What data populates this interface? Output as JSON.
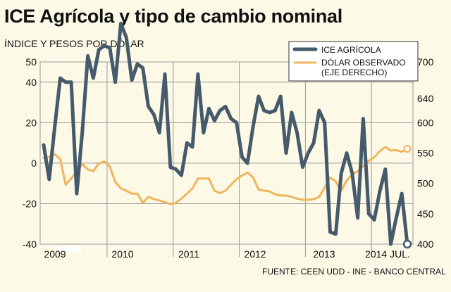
{
  "title": "ICE Agrícola y tipo de cambio nominal",
  "subtitle": "ÍNDICE Y PESOS POR DÓLAR",
  "source": "FUENTE: CEEN UDD - INE - BANCO CENTRAL",
  "colors": {
    "ice": "#455a6b",
    "dolar": "#f0b55c",
    "grid": "#9a9a9a",
    "background": "#fcf9e7"
  },
  "chart_data": {
    "type": "line",
    "x_tick_labels": [
      "2009",
      "2010",
      "2011",
      "2012",
      "2013",
      "2014 JUL."
    ],
    "x_year_starts": [
      2009,
      2010,
      2011,
      2012,
      2013,
      2014
    ],
    "y_left": {
      "ticks": [
        "50",
        "40",
        "20",
        "0",
        "-20",
        "-40"
      ],
      "min": -40,
      "max": 50,
      "tick_values": [
        50,
        40,
        20,
        0,
        -20,
        -40
      ]
    },
    "y_right": {
      "ticks": [
        "700",
        "640",
        "600",
        "550",
        "500",
        "450",
        "400"
      ],
      "min": 400,
      "max": 700,
      "tick_values": [
        700,
        640,
        600,
        550,
        500,
        450,
        400
      ]
    },
    "legend": {
      "position": "top-right"
    },
    "series": [
      {
        "name": "ICE AGRÍCOLA",
        "axis": "left",
        "x": [
          2009.0,
          2009.083,
          2009.167,
          2009.25,
          2009.333,
          2009.417,
          2009.5,
          2009.583,
          2009.667,
          2009.75,
          2009.833,
          2009.917,
          2010.0,
          2010.083,
          2010.167,
          2010.25,
          2010.333,
          2010.417,
          2010.5,
          2010.583,
          2010.667,
          2010.75,
          2010.833,
          2010.917,
          2011.0,
          2011.083,
          2011.167,
          2011.25,
          2011.333,
          2011.417,
          2011.5,
          2011.583,
          2011.667,
          2011.75,
          2011.833,
          2011.917,
          2012.0,
          2012.083,
          2012.167,
          2012.25,
          2012.333,
          2012.417,
          2012.5,
          2012.583,
          2012.667,
          2012.75,
          2012.833,
          2012.917,
          2013.0,
          2013.083,
          2013.167,
          2013.25,
          2013.333,
          2013.417,
          2013.5,
          2013.583,
          2013.667,
          2013.75,
          2013.833,
          2013.917,
          2014.0,
          2014.083,
          2014.167,
          2014.25,
          2014.333,
          2014.417,
          2014.5
        ],
        "values": [
          9,
          -8,
          18,
          42,
          40,
          40,
          -15,
          15,
          53,
          42,
          56,
          58,
          57,
          40,
          69,
          62,
          41,
          49,
          47,
          28,
          24,
          15,
          44,
          -2,
          -3,
          -6,
          10,
          8,
          44,
          15,
          27,
          21,
          26,
          28,
          22,
          20,
          3,
          0,
          18,
          33,
          26,
          25,
          26,
          33,
          5,
          25,
          15,
          -2,
          5,
          10,
          26,
          20,
          -34,
          -35,
          -5,
          5,
          -5,
          -27,
          22,
          -25,
          -28,
          -14,
          -3,
          -40,
          -27,
          -15,
          -40
        ]
      },
      {
        "name": "DÓLAR OBSERVADO (EJE DERECHO)",
        "axis": "right",
        "x": [
          2009.0,
          2009.083,
          2009.167,
          2009.25,
          2009.333,
          2009.417,
          2009.5,
          2009.583,
          2009.667,
          2009.75,
          2009.833,
          2009.917,
          2010.0,
          2010.083,
          2010.167,
          2010.25,
          2010.333,
          2010.417,
          2010.5,
          2010.583,
          2010.667,
          2010.75,
          2010.833,
          2010.917,
          2011.0,
          2011.083,
          2011.167,
          2011.25,
          2011.333,
          2011.417,
          2011.5,
          2011.583,
          2011.667,
          2011.75,
          2011.833,
          2011.917,
          2012.0,
          2012.083,
          2012.167,
          2012.25,
          2012.333,
          2012.417,
          2012.5,
          2012.583,
          2012.667,
          2012.75,
          2012.833,
          2012.917,
          2013.0,
          2013.083,
          2013.167,
          2013.25,
          2013.333,
          2013.417,
          2013.5,
          2013.583,
          2013.667,
          2013.75,
          2013.833,
          2013.917,
          2014.0,
          2014.083,
          2014.167,
          2014.25,
          2014.333,
          2014.417,
          2014.5
        ],
        "values": [
          542,
          544,
          548,
          540,
          498,
          508,
          520,
          532,
          523,
          520,
          533,
          536,
          528,
          502,
          492,
          488,
          483,
          483,
          468,
          478,
          474,
          472,
          469,
          466,
          468,
          475,
          483,
          492,
          508,
          508,
          508,
          488,
          484,
          488,
          498,
          507,
          513,
          518,
          510,
          490,
          488,
          487,
          482,
          480,
          480,
          478,
          475,
          473,
          473,
          474,
          478,
          493,
          510,
          503,
          488,
          505,
          514,
          520,
          528,
          537,
          543,
          553,
          560,
          554,
          555,
          552,
          557
        ]
      }
    ]
  }
}
